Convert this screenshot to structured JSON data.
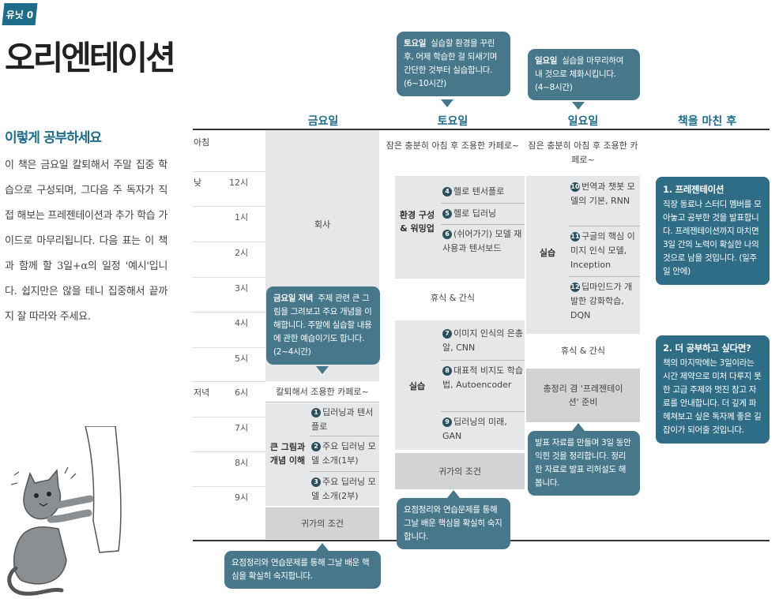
{
  "header": {
    "tag": "유닛 0",
    "title": "오리엔테이션"
  },
  "intro": {
    "heading": "이렇게 공부하세요",
    "body": "이 책은 금요일 칼퇴해서 주말 집중 학습으로 구성되며, 그다음 주 독자가 직접 해보는 프레젠테이션과 추가 학습 가이드로 마무리됩니다. 다음 표는 이 책과 함께 할 3일+α의 일정 '예시'입니다. 쉽지만은 않을 테니 집중해서 끝까지 잘 따라와 주세요."
  },
  "columns": [
    "금요일",
    "토요일",
    "일요일",
    "책을 마친 후"
  ],
  "time_labels": {
    "morning": "아침",
    "noon": "낮",
    "evening": "저녁"
  },
  "hours": [
    "12시",
    "1시",
    "2시",
    "3시",
    "4시",
    "5시",
    "6시",
    "7시",
    "8시",
    "9시"
  ],
  "friday": {
    "work": "회사",
    "after_work": "칼퇴해서 조용한 카페로~",
    "section_label": "큰 그림과 개념 이해",
    "items": [
      {
        "num": "1",
        "text": "딥러닝과 텐서플로"
      },
      {
        "num": "2",
        "text": "주요 딥러닝 모델 소개(1부)"
      },
      {
        "num": "3",
        "text": "주요 딥러닝 모델 소개(2부)"
      }
    ],
    "footer": "귀가의 조건"
  },
  "saturday": {
    "wake": "잠은 충분히 아침 후 조용한 카페로~",
    "warmup_label": "환경 구성 & 워밍업",
    "warmup_items": [
      {
        "num": "4",
        "text": "헬로 텐서플로"
      },
      {
        "num": "5",
        "text": "헬로 딥러닝"
      },
      {
        "num": "6",
        "text": "(쉬어가기) 모델 재사용과 텐서보드"
      }
    ],
    "break": "휴식 & 간식",
    "practice_label": "실습",
    "practice_items": [
      {
        "num": "7",
        "text": "이미지 인식의 은총알, CNN"
      },
      {
        "num": "8",
        "text": "대표적 비지도 학습법, Autoencoder"
      },
      {
        "num": "9",
        "text": "딥러닝의 미래, GAN"
      }
    ],
    "footer": "귀가의 조건"
  },
  "sunday": {
    "wake": "잠은 충분히 아침 후 조용한 카페로~",
    "practice_label": "실습",
    "items": [
      {
        "num": "10",
        "text": "번역과 챗봇 모델의 기본, RNN"
      },
      {
        "num": "11",
        "text": "구글의 핵심 이미지 인식 모델, Inception"
      },
      {
        "num": "12",
        "text": "딥마인드가 개발한 강화학습, DQN"
      }
    ],
    "break": "휴식 & 간식",
    "review": "총정리 겸 '프레젠테이션' 준비"
  },
  "bubbles": {
    "saturday_top": {
      "day": "토요일",
      "text": "실습할 환경을 꾸린 후, 어제 학습한 걸 되새기며 간단한 것부터 실습합니다. (6~10시간)"
    },
    "sunday_top": {
      "day": "일요일",
      "text": "실습을 마무리하여 내 것으로 체화시킵니다. (4~8시간)"
    },
    "friday_mid": {
      "day": "금요일 저녁",
      "text": "주제 관련 큰 그림을 그려보고 주요 개념을 이해합니다. 주말에 실습할 내용에 관한 예습이기도 합니다. (2~4시간)"
    },
    "sunday_bottom": {
      "text": "발표 자료를 만들며 3일 동안 익힌 것을 정리합니다. 정리한 자료로 발표 리허설도 해봅니다."
    },
    "saturday_bottom": {
      "text": "요점정리와 연습문제를 통해 그날 배운 핵심을 확실히 숙지합니다."
    },
    "friday_bottom": {
      "text": "요점정리와 연습문제를 통해 그날 배운 핵심을 확실히 숙지합니다."
    }
  },
  "after": {
    "card1": {
      "title": "1. 프레젠테이션",
      "body": "직장 동료나 스터디 멤버를 모아놓고 공부한 것을 발표합니다. 프레젠테이션까지 마치면 3일 간의 노력이 확실한 나의 것으로 남을 것입니다. (일주일 안에)"
    },
    "card2": {
      "title": "2. 더 공부하고 싶다면?",
      "body": "책의 마지막에는 3일이라는 시간 제약으로 미처 다루지 못한 고급 주제와 멋진 참고 자료를 안내합니다. 더 깊게 파헤쳐보고 싶은 독자께 좋은 길잡이가 되어줄 것입니다."
    }
  },
  "colors": {
    "accent": "#1f6b8a",
    "bubble": "#46778a",
    "card": "#2f6c86",
    "column_bg": "#e6e7e8"
  }
}
